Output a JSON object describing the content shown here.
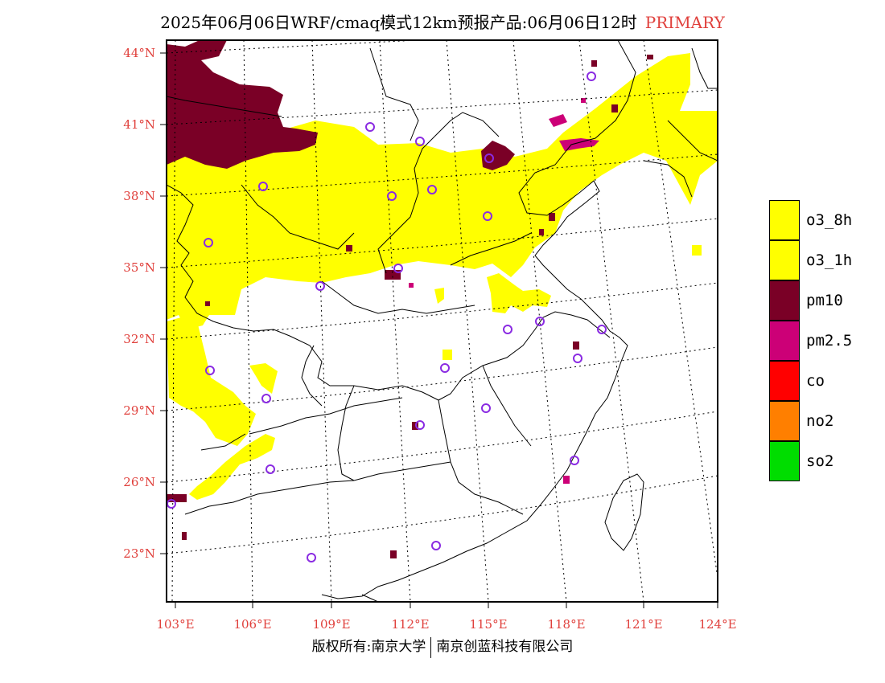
{
  "header": {
    "title": "2025年06月06日WRF/cmaq模式12km预报产品:06月06日12时",
    "tag": "PRIMARY"
  },
  "footer": {
    "copyright": "版权所有:南京大学",
    "company": "南京创蓝科技有限公司"
  },
  "axes": {
    "lat_labels": [
      "44°N",
      "41°N",
      "38°N",
      "35°N",
      "32°N",
      "29°N",
      "26°N",
      "23°N"
    ],
    "lon_labels": [
      "103°E",
      "106°E",
      "109°E",
      "112°E",
      "115°E",
      "118°E",
      "121°E",
      "124°E"
    ],
    "label_color": "#e0403c"
  },
  "legend": {
    "items": [
      {
        "label": "o3_8h",
        "color": "#ffff00"
      },
      {
        "label": "o3_1h",
        "color": "#ffff00"
      },
      {
        "label": "pm10",
        "color": "#7a0026"
      },
      {
        "label": "pm2.5",
        "color": "#cc0077"
      },
      {
        "label": "co",
        "color": "#ff0000"
      },
      {
        "label": "no2",
        "color": "#ff7f00"
      },
      {
        "label": "so2",
        "color": "#00dd00"
      }
    ]
  },
  "map": {
    "colors": {
      "o3": "#ffff00",
      "pm10": "#7a0026",
      "pm25": "#cc0077",
      "station": "#8a2be2"
    }
  }
}
